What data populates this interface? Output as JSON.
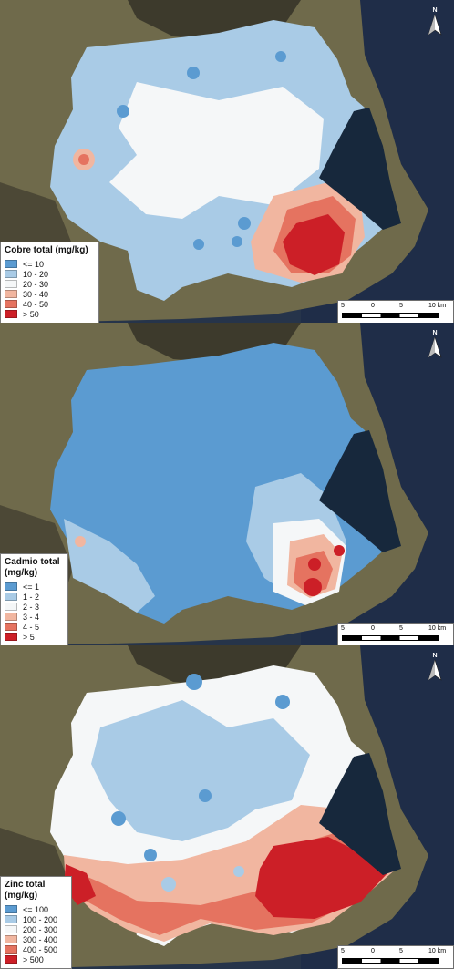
{
  "maps": [
    {
      "title": "Cobre total (mg/kg)",
      "classes": [
        {
          "label": "<= 10",
          "color": "#5b9bd1"
        },
        {
          "label": "10 - 20",
          "color": "#a9cbe6"
        },
        {
          "label": "20 - 30",
          "color": "#f5f7f8"
        },
        {
          "label": "30 - 40",
          "color": "#f1b6a0"
        },
        {
          "label": "40 - 50",
          "color": "#e57360"
        },
        {
          "label": "> 50",
          "color": "#cc1f27"
        }
      ]
    },
    {
      "title": "Cadmio total\n(mg/kg)",
      "classes": [
        {
          "label": "<= 1",
          "color": "#5b9bd1"
        },
        {
          "label": "1 - 2",
          "color": "#a9cbe6"
        },
        {
          "label": "2 - 3",
          "color": "#f5f7f8"
        },
        {
          "label": "3 - 4",
          "color": "#f1b6a0"
        },
        {
          "label": "4 - 5",
          "color": "#e57360"
        },
        {
          "label": "> 5",
          "color": "#cc1f27"
        }
      ]
    },
    {
      "title": "Zinc total\n(mg/kg)",
      "classes": [
        {
          "label": "<= 100",
          "color": "#5b9bd1"
        },
        {
          "label": "100 - 200",
          "color": "#a9cbe6"
        },
        {
          "label": "200 - 300",
          "color": "#f5f7f8"
        },
        {
          "label": "300 - 400",
          "color": "#f1b6a0"
        },
        {
          "label": "400 - 500",
          "color": "#e57360"
        },
        {
          "label": "> 500",
          "color": "#cc1f27"
        }
      ]
    }
  ],
  "scale": {
    "labels": [
      "5",
      "0",
      "5",
      "10 km"
    ]
  },
  "north": "N"
}
